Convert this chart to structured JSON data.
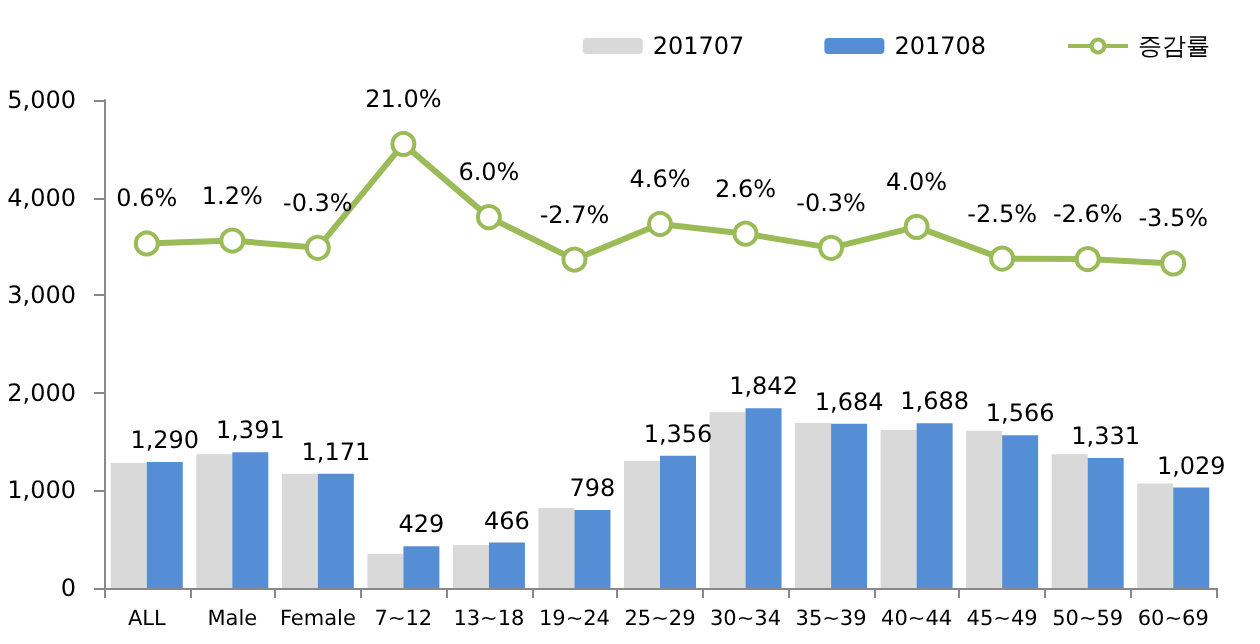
{
  "chart_data": {
    "type": "bar",
    "categories": [
      "ALL",
      "Male",
      "Female",
      "7~12",
      "13~18",
      "19~24",
      "25~29",
      "30~34",
      "35~39",
      "40~44",
      "45~49",
      "50~59",
      "60~69"
    ],
    "series": [
      {
        "name": "201707",
        "color": "#d9d9d9",
        "values": [
          1280,
          1370,
          1170,
          350,
          440,
          820,
          1300,
          1800,
          1690,
          1620,
          1610,
          1370,
          1070
        ]
      },
      {
        "name": "201708",
        "color": "#558ed5",
        "values": [
          1290,
          1391,
          1171,
          429,
          466,
          798,
          1356,
          1842,
          1684,
          1688,
          1566,
          1331,
          1029
        ],
        "value_labels": [
          "1,290",
          "1,391",
          "1,171",
          "429",
          "466",
          "798",
          "1,356",
          "1,842",
          "1,684",
          "1,688",
          "1,566",
          "1,331",
          "1,029"
        ]
      },
      {
        "name": "증감률",
        "type": "line",
        "axis": "y2",
        "color": "#9bbb59",
        "marker": "circle",
        "values": [
          0.6,
          1.2,
          -0.3,
          21.0,
          6.0,
          -2.7,
          4.6,
          2.6,
          -0.3,
          4.0,
          -2.5,
          -2.6,
          -3.5
        ],
        "value_labels": [
          "0.6%",
          "1.2%",
          "-0.3%",
          "21.0%",
          "6.0%",
          "-2.7%",
          "4.6%",
          "2.6%",
          "-0.3%",
          "4.0%",
          "-2.5%",
          "-2.6%",
          "-3.5%"
        ]
      }
    ],
    "ylim": [
      0,
      5000
    ],
    "yticks": [
      {
        "value": 0,
        "label": "0"
      },
      {
        "value": 1000,
        "label": "1,000"
      },
      {
        "value": 2000,
        "label": "2,000"
      },
      {
        "value": 3000,
        "label": "3,000"
      },
      {
        "value": 4000,
        "label": "4,000"
      },
      {
        "value": 5000,
        "label": "5,000"
      }
    ],
    "y2lim": [
      -70,
      30
    ],
    "grid": false,
    "legend": "top right"
  }
}
